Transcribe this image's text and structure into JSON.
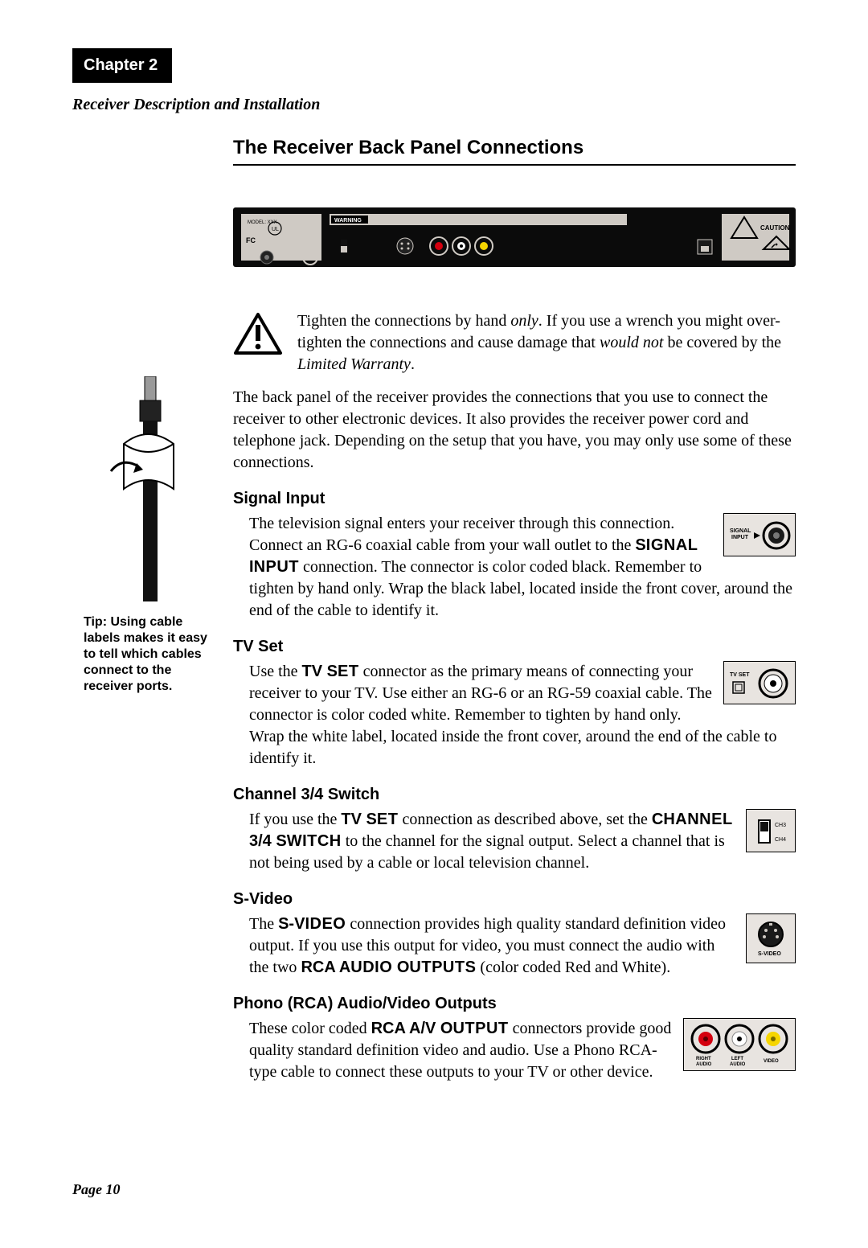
{
  "chapter_label": "Chapter 2",
  "subtitle": "Receiver Description and Installation",
  "h1": "The Receiver Back Panel Connections",
  "warning_html": "Tighten the connections by hand <i>only</i>. If you use a wrench you might over-tighten the connections and cause damage that <i>would not</i> be covered by the <i>Limited Warranty</i>.",
  "intro_para": "The back panel of the receiver provides the connections that you use to connect the receiver to other electronic devices. It also provides the receiver power cord and telephone jack. Depending on the setup that you have, you may only use some of these connections.",
  "sidebar_tip": "Tip: Using cable labels makes it easy to tell which cables connect to the receiver ports.",
  "sections": {
    "signal": {
      "title": "Signal Input",
      "body_html": "The television signal enters your receiver through this connection. Connect an RG-6 coaxial cable from your wall outlet to the <span class=\"sb\">S<span class=\"smallcaps\">IGNAL</span> I<span class=\"smallcaps\">NPUT</span></span> connection. The connector is color coded black. Remember to tighten by hand only. Wrap the black label, located inside the front cover, around the end of the cable to identify it.",
      "fig_label": "SIGNAL\nINPUT"
    },
    "tvset": {
      "title": "TV Set",
      "body_html": "Use the <span class=\"sb\">TV S<span class=\"smallcaps\">ET</span></span> connector as the primary means of connecting your receiver to your TV. Use either an RG-6 or an RG-59 coaxial cable. The connector is color coded white. Remember to tighten by hand only. Wrap the white label, located inside the front cover, around the end of the cable to identify it.",
      "fig_label": "TV SET"
    },
    "ch34": {
      "title": "Channel 3/4 Switch",
      "body_html": "If you use the <span class=\"sb\">TV S<span class=\"smallcaps\">ET</span></span> connection as described above, set the <span class=\"sb\">C<span class=\"smallcaps\">HANNEL</span> 3/4 S<span class=\"smallcaps\">WITCH</span></span> to the channel for the signal output. Select a channel that is not being used by a cable or local television channel.",
      "fig_labels": [
        "CH3",
        "CH4"
      ]
    },
    "svideo": {
      "title": "S-Video",
      "body_html": "The <span class=\"sb\">S-V<span class=\"smallcaps\">IDEO</span></span> connection provides high quality standard definition video output. If you use this output for video, you must connect the audio with the two <span class=\"sb\">RCA A<span class=\"smallcaps\">UDIO</span> O<span class=\"smallcaps\">UTPUTS</span></span> (color coded Red and White).",
      "fig_label": "S-VIDEO"
    },
    "rca": {
      "title": "Phono (RCA) Audio/Video Outputs",
      "body_html": "These color coded <span class=\"sb\">RCA A/V O<span class=\"smallcaps\">UTPUT</span></span> connectors provide good quality standard definition video and audio. Use a Phono RCA-type cable to connect these outputs to your TV or other device.",
      "jack_labels": [
        "RIGHT\nAUDIO",
        "LEFT\nAUDIO",
        "VIDEO"
      ],
      "jack_colors": [
        "#d4000f",
        "#ffffff",
        "#f6d500"
      ]
    }
  },
  "page_footer": "Page 10",
  "colors": {
    "panel_bg": "#0b0b0b",
    "panel_inner": "#cfcac4",
    "rca_red": "#d4000f",
    "rca_white": "#ffffff",
    "rca_yellow": "#f6d500",
    "fig_bg": "#e8e4e0"
  }
}
